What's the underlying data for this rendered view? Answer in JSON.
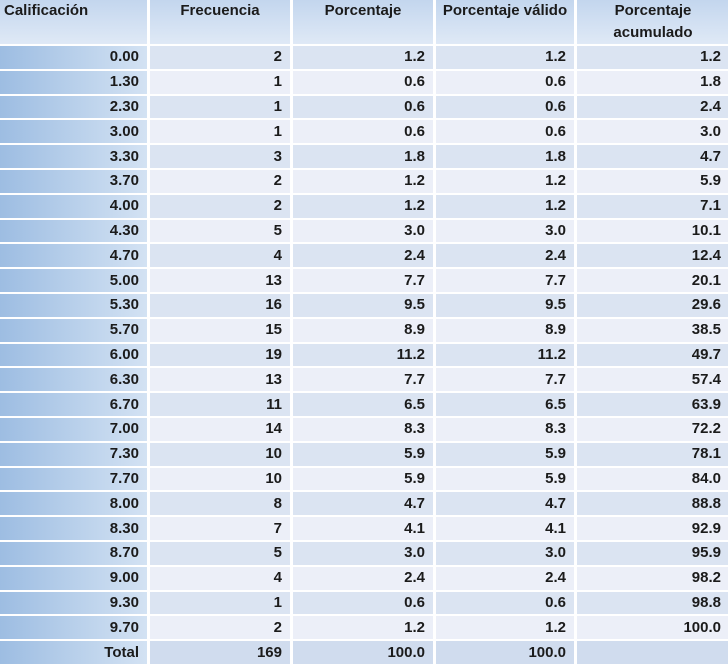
{
  "table": {
    "header": [
      "Calificación",
      "Frecuencia",
      "Porcentaje",
      "Porcentaje válido",
      "Porcentaje acumulado"
    ],
    "rows": [
      [
        "0.00",
        "2",
        "1.2",
        "1.2",
        "1.2"
      ],
      [
        "1.30",
        "1",
        "0.6",
        "0.6",
        "1.8"
      ],
      [
        "2.30",
        "1",
        "0.6",
        "0.6",
        "2.4"
      ],
      [
        "3.00",
        "1",
        "0.6",
        "0.6",
        "3.0"
      ],
      [
        "3.30",
        "3",
        "1.8",
        "1.8",
        "4.7"
      ],
      [
        "3.70",
        "2",
        "1.2",
        "1.2",
        "5.9"
      ],
      [
        "4.00",
        "2",
        "1.2",
        "1.2",
        "7.1"
      ],
      [
        "4.30",
        "5",
        "3.0",
        "3.0",
        "10.1"
      ],
      [
        "4.70",
        "4",
        "2.4",
        "2.4",
        "12.4"
      ],
      [
        "5.00",
        "13",
        "7.7",
        "7.7",
        "20.1"
      ],
      [
        "5.30",
        "16",
        "9.5",
        "9.5",
        "29.6"
      ],
      [
        "5.70",
        "15",
        "8.9",
        "8.9",
        "38.5"
      ],
      [
        "6.00",
        "19",
        "11.2",
        "11.2",
        "49.7"
      ],
      [
        "6.30",
        "13",
        "7.7",
        "7.7",
        "57.4"
      ],
      [
        "6.70",
        "11",
        "6.5",
        "6.5",
        "63.9"
      ],
      [
        "7.00",
        "14",
        "8.3",
        "8.3",
        "72.2"
      ],
      [
        "7.30",
        "10",
        "5.9",
        "5.9",
        "78.1"
      ],
      [
        "7.70",
        "10",
        "5.9",
        "5.9",
        "84.0"
      ],
      [
        "8.00",
        "8",
        "4.7",
        "4.7",
        "88.8"
      ],
      [
        "8.30",
        "7",
        "4.1",
        "4.1",
        "92.9"
      ],
      [
        "8.70",
        "5",
        "3.0",
        "3.0",
        "95.9"
      ],
      [
        "9.00",
        "4",
        "2.4",
        "2.4",
        "98.2"
      ],
      [
        "9.30",
        "1",
        "0.6",
        "0.6",
        "98.8"
      ],
      [
        "9.70",
        "2",
        "1.2",
        "1.2",
        "100.0"
      ]
    ],
    "total": [
      "Total",
      "169",
      "100.0",
      "100.0"
    ]
  }
}
